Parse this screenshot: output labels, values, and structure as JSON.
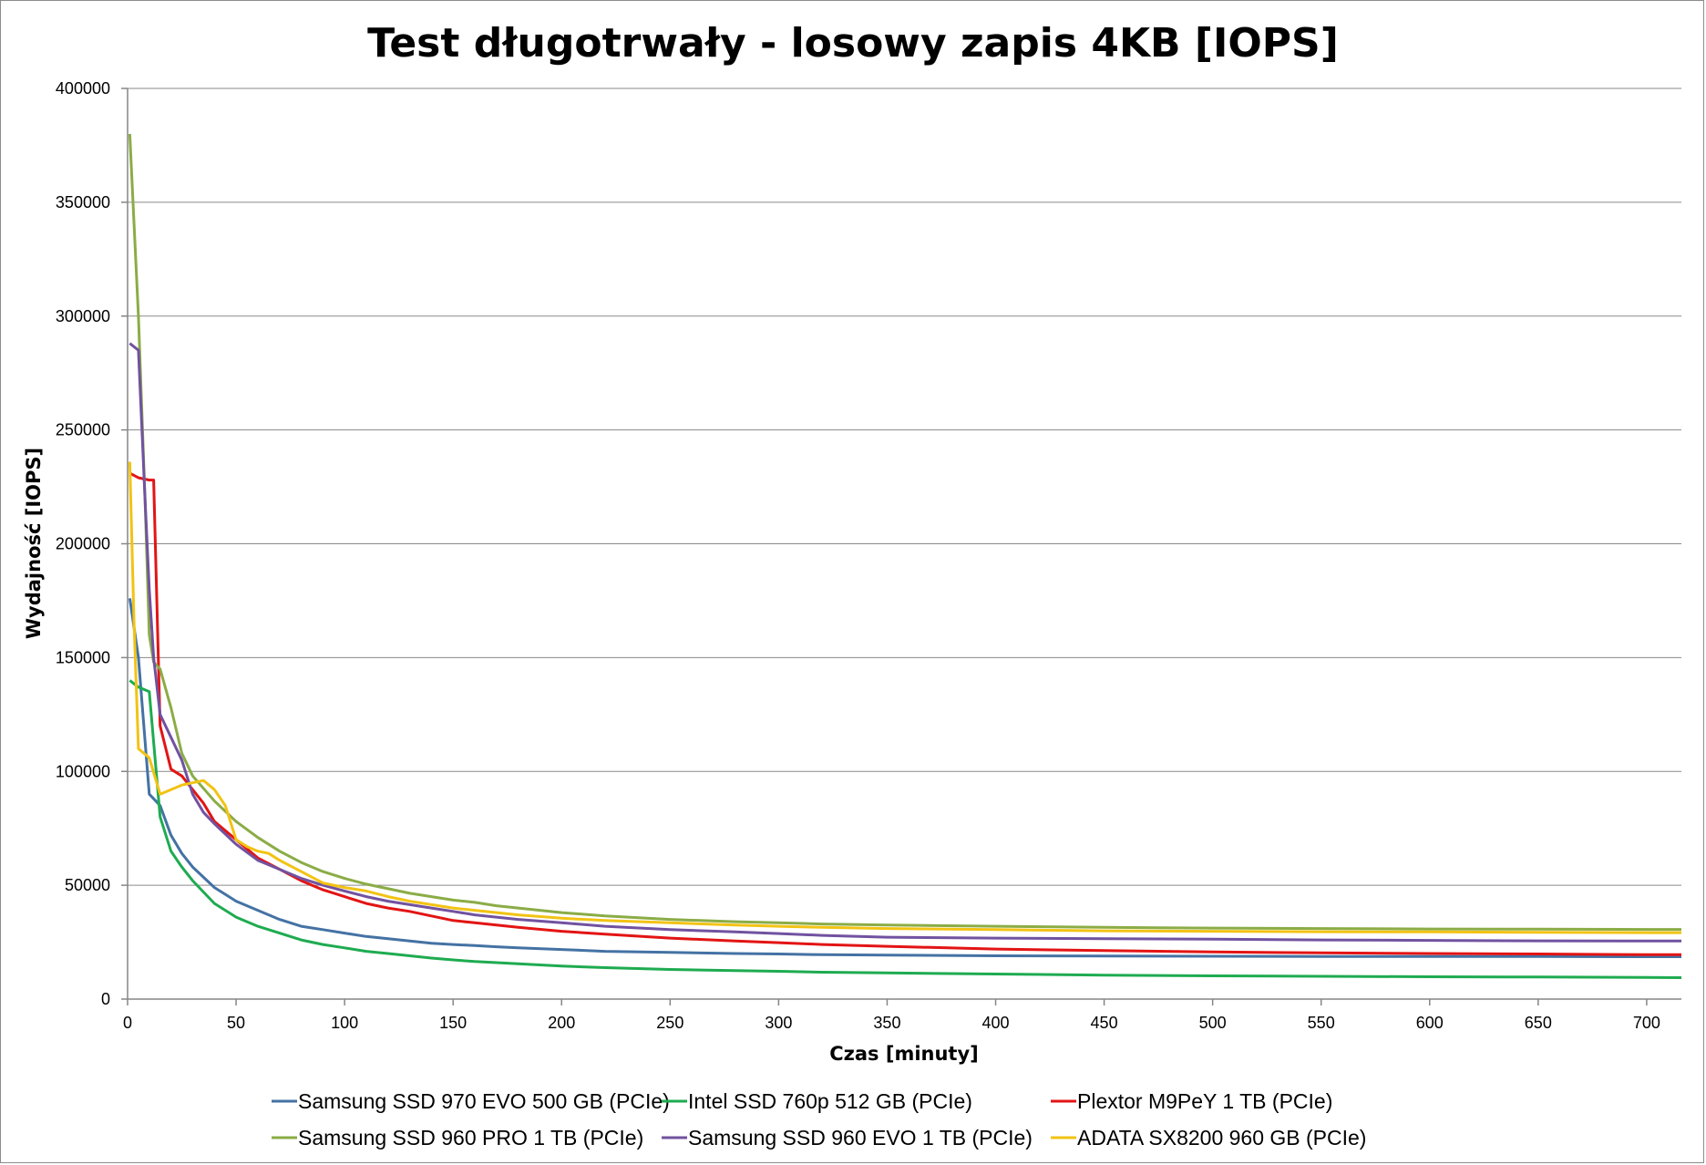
{
  "chart_data": {
    "type": "line",
    "title": "Test długotrwały - losowy zapis 4KB [IOPS]",
    "xlabel": "Czas [minuty]",
    "ylabel": "Wydajność [IOPS]",
    "xlim": [
      0,
      716
    ],
    "ylim": [
      0,
      400000
    ],
    "xticks": [
      0,
      50,
      100,
      150,
      200,
      250,
      300,
      350,
      400,
      450,
      500,
      550,
      600,
      650,
      700
    ],
    "xtick_labels": [
      "0",
      "50",
      "100",
      "150",
      "200",
      "250",
      "300",
      "350",
      "400",
      "450",
      "500",
      "550",
      "600",
      "650",
      "700"
    ],
    "yticks": [
      0,
      50000,
      100000,
      150000,
      200000,
      250000,
      300000,
      350000,
      400000
    ],
    "ytick_labels": [
      "0",
      "50000",
      "100000",
      "150000",
      "200000",
      "250000",
      "300000",
      "350000",
      "400000"
    ],
    "grid": "horizontal",
    "legend_position": "bottom",
    "series": [
      {
        "name": "Samsung SSD 970 EVO 500 GB (PCIe)",
        "color": "#4472a4",
        "x": [
          1,
          5,
          10,
          15,
          20,
          25,
          30,
          40,
          50,
          60,
          70,
          80,
          90,
          100,
          110,
          120,
          130,
          140,
          150,
          160,
          170,
          180,
          200,
          220,
          250,
          280,
          300,
          320,
          350,
          400,
          450,
          500,
          550,
          600,
          650,
          700,
          716
        ],
        "y": [
          176000,
          150000,
          90000,
          85000,
          72000,
          64000,
          58000,
          49000,
          43000,
          39000,
          35000,
          32000,
          30500,
          29000,
          27500,
          26500,
          25500,
          24500,
          24000,
          23500,
          23000,
          22500,
          21800,
          21000,
          20500,
          20000,
          19800,
          19500,
          19300,
          19000,
          18900,
          18800,
          18700,
          18700,
          18700,
          18600,
          18600
        ]
      },
      {
        "name": "Intel SSD 760p 512 GB (PCIe)",
        "color": "#1eab50",
        "x": [
          1,
          5,
          10,
          15,
          20,
          25,
          30,
          40,
          50,
          60,
          70,
          80,
          90,
          100,
          110,
          120,
          130,
          140,
          150,
          160,
          170,
          180,
          200,
          220,
          250,
          280,
          300,
          320,
          350,
          400,
          450,
          500,
          550,
          600,
          650,
          700,
          716
        ],
        "y": [
          140000,
          137000,
          135000,
          80000,
          65000,
          58000,
          52000,
          42000,
          36000,
          32000,
          29000,
          26000,
          24000,
          22500,
          21000,
          20000,
          19000,
          18000,
          17200,
          16500,
          16000,
          15500,
          14500,
          13800,
          13000,
          12500,
          12200,
          11800,
          11500,
          11000,
          10500,
          10200,
          10000,
          9800,
          9700,
          9500,
          9400
        ]
      },
      {
        "name": "Plextor M9PeY 1 TB (PCIe)",
        "color": "#e31414",
        "x": [
          1,
          5,
          10,
          12,
          15,
          20,
          25,
          30,
          35,
          40,
          50,
          60,
          70,
          80,
          90,
          100,
          110,
          120,
          130,
          140,
          150,
          160,
          170,
          180,
          200,
          220,
          250,
          280,
          300,
          320,
          350,
          400,
          450,
          500,
          550,
          600,
          650,
          700,
          716
        ],
        "y": [
          231000,
          229000,
          228000,
          228000,
          120000,
          101000,
          98000,
          92000,
          86000,
          78000,
          70000,
          62000,
          57000,
          52000,
          48000,
          45000,
          42000,
          40000,
          38500,
          36500,
          34500,
          33500,
          32500,
          31500,
          29800,
          28500,
          26800,
          25500,
          24800,
          24000,
          23200,
          22000,
          21300,
          20700,
          20300,
          20000,
          19800,
          19500,
          19500
        ]
      },
      {
        "name": "Samsung SSD 960 PRO 1 TB (PCIe)",
        "color": "#8bac46",
        "x": [
          1,
          5,
          8,
          10,
          12,
          15,
          20,
          25,
          30,
          40,
          50,
          60,
          70,
          80,
          90,
          100,
          110,
          120,
          130,
          140,
          150,
          160,
          170,
          180,
          200,
          220,
          250,
          280,
          300,
          320,
          350,
          400,
          450,
          500,
          550,
          600,
          650,
          700,
          716
        ],
        "y": [
          380000,
          300000,
          220000,
          160000,
          148000,
          145000,
          128000,
          108000,
          98000,
          87000,
          78000,
          71000,
          65000,
          60000,
          56000,
          53000,
          50500,
          48500,
          46500,
          45000,
          43500,
          42500,
          41000,
          40000,
          38000,
          36500,
          35000,
          34000,
          33500,
          33000,
          32500,
          32000,
          31500,
          31200,
          31000,
          30800,
          30700,
          30600,
          30600
        ]
      },
      {
        "name": "Samsung SSD 960 EVO 1 TB (PCIe)",
        "color": "#7152a0",
        "x": [
          1,
          5,
          8,
          10,
          12,
          15,
          20,
          25,
          30,
          35,
          40,
          50,
          60,
          70,
          80,
          90,
          100,
          110,
          120,
          130,
          140,
          150,
          160,
          170,
          180,
          200,
          220,
          250,
          280,
          300,
          320,
          350,
          400,
          450,
          500,
          550,
          600,
          650,
          700,
          716
        ],
        "y": [
          288000,
          285000,
          220000,
          180000,
          150000,
          125000,
          115000,
          105000,
          90000,
          82000,
          77000,
          68000,
          61000,
          57000,
          53000,
          50000,
          47500,
          45000,
          43000,
          41500,
          40000,
          38500,
          37000,
          36000,
          35000,
          33500,
          32000,
          30500,
          29500,
          28800,
          28000,
          27200,
          26800,
          26500,
          26300,
          26000,
          25800,
          25600,
          25500,
          25500
        ]
      },
      {
        "name": "ADATA SX8200 960 GB (PCIe)",
        "color": "#f2c314",
        "x": [
          1,
          3,
          5,
          10,
          15,
          20,
          25,
          30,
          35,
          40,
          45,
          50,
          55,
          60,
          65,
          70,
          80,
          90,
          100,
          110,
          120,
          130,
          140,
          150,
          160,
          170,
          180,
          200,
          220,
          250,
          280,
          300,
          320,
          350,
          400,
          450,
          500,
          550,
          600,
          650,
          700,
          716
        ],
        "y": [
          236000,
          165000,
          110000,
          106000,
          90000,
          92000,
          94000,
          95000,
          96000,
          92000,
          85000,
          70000,
          67000,
          65000,
          64000,
          61000,
          56000,
          51000,
          49000,
          47500,
          45000,
          43000,
          41500,
          40000,
          39000,
          38000,
          37000,
          35500,
          34500,
          33500,
          32500,
          32000,
          31500,
          31000,
          30500,
          30000,
          29800,
          29600,
          29500,
          29300,
          29200,
          29200
        ]
      }
    ]
  }
}
